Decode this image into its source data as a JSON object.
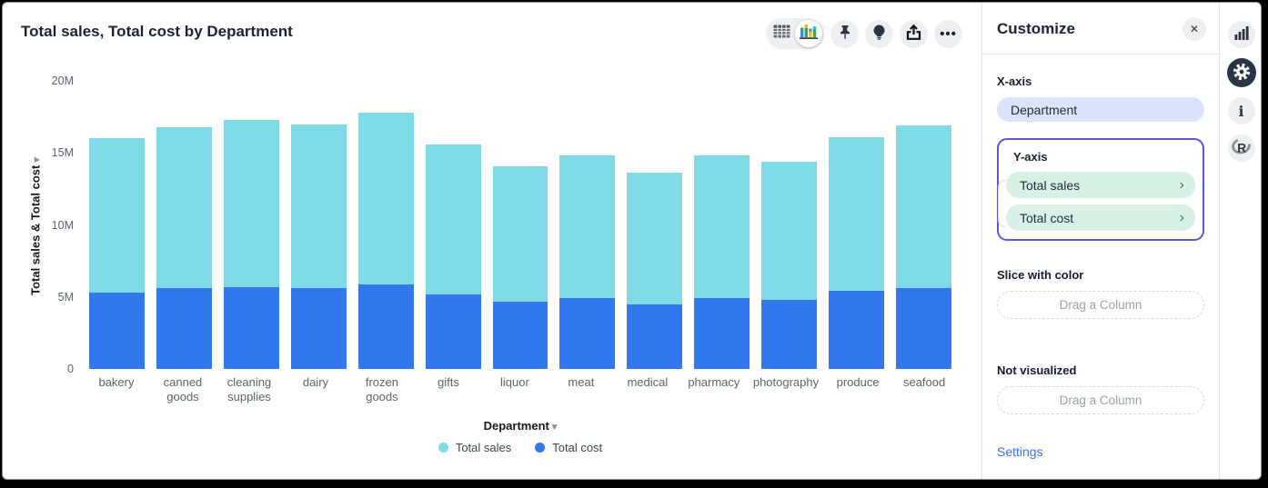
{
  "header": {
    "title": "Total sales, Total cost by Department",
    "toolbar_icons": [
      "table-view",
      "chart-view",
      "pin",
      "lightbulb",
      "export",
      "more"
    ]
  },
  "chart_data": {
    "type": "bar",
    "stacked": true,
    "title": "Total sales, Total cost by Department",
    "categories": [
      "bakery",
      "canned goods",
      "cleaning supplies",
      "dairy",
      "frozen goods",
      "gifts",
      "liquor",
      "meat",
      "medical",
      "pharmacy",
      "photography",
      "produce",
      "seafood"
    ],
    "series": [
      {
        "name": "Total cost",
        "color": "#3278EC",
        "values": [
          5.3,
          5.6,
          5.7,
          5.6,
          5.9,
          5.2,
          4.7,
          4.9,
          4.5,
          4.9,
          4.8,
          5.4,
          5.6
        ]
      },
      {
        "name": "Total sales",
        "color": "#7EDBE6",
        "values": [
          10.7,
          11.2,
          11.6,
          11.4,
          11.9,
          10.4,
          9.4,
          9.9,
          9.1,
          9.9,
          9.6,
          10.7,
          11.3
        ]
      }
    ],
    "legend": [
      {
        "label": "Total sales",
        "color": "#7EDBE6"
      },
      {
        "label": "Total cost",
        "color": "#3278EC"
      }
    ],
    "unit": "M",
    "ylim": [
      0,
      20
    ],
    "yticks": [
      "20M",
      "15M",
      "10M",
      "5M",
      "0"
    ],
    "ylabel": "Total sales & Total cost",
    "xlabel": "Department",
    "grid": false,
    "legend_position": "bottom"
  },
  "panel": {
    "title": "Customize",
    "close_icon": "close",
    "x_axis": {
      "label": "X-axis",
      "value": "Department"
    },
    "y_axis": {
      "label": "Y-axis",
      "items": [
        "Total sales",
        "Total cost"
      ]
    },
    "slice": {
      "label": "Slice with color",
      "placeholder": "Drag a Column"
    },
    "not_visualized": {
      "label": "Not visualized",
      "placeholder": "Drag a Column"
    },
    "settings_label": "Settings"
  },
  "sidebar": {
    "icons": [
      "bar-chart",
      "gear",
      "info",
      "r-logo"
    ],
    "active_icon": "gear"
  },
  "colors": {
    "total_sales": "#7EDBE6",
    "total_cost": "#3278EC",
    "accent_border": "#5A58D5",
    "x_pill_bg": "#DBE3F8",
    "y_pill_bg": "#D8F1E5",
    "link": "#3B70F2"
  }
}
